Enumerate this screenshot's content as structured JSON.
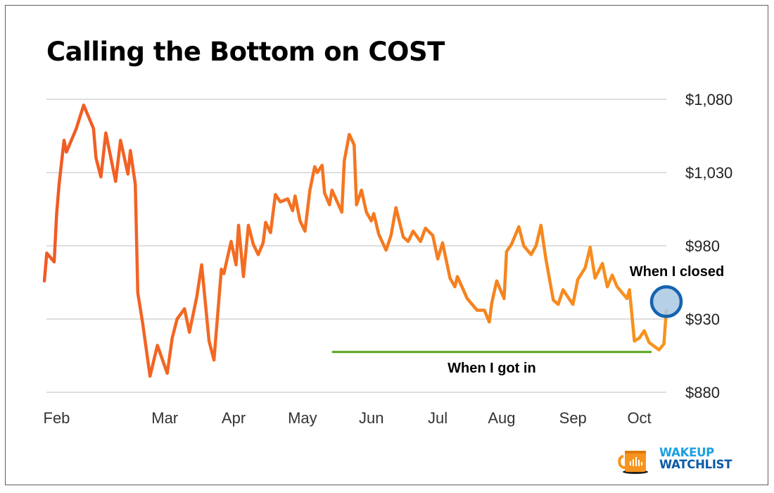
{
  "header": {
    "title": "Calling the Bottom on COST"
  },
  "logo": {
    "line1": "WAKEUP",
    "line2": "WATCHLIST",
    "icon": "coffee-mug-icon"
  },
  "colors": {
    "line_start": "#f15a24",
    "line_end": "#f7941d",
    "entry_line": "#5aa31b",
    "exit_marker_fill": "#a9c8e4",
    "exit_marker_stroke": "#1563b0",
    "grid": "#bdbdbd"
  },
  "chart_data": {
    "type": "line",
    "title": "Calling the Bottom on COST",
    "xlabel": "",
    "ylabel": "",
    "x_unit": "trading-day index (approx.)",
    "ylim": [
      880,
      1080
    ],
    "yticks": [
      {
        "value": 1080,
        "label": "$1,080"
      },
      {
        "value": 1030,
        "label": "$1,030"
      },
      {
        "value": 980,
        "label": "$980"
      },
      {
        "value": 930,
        "label": "$930"
      },
      {
        "value": 880,
        "label": "$880"
      }
    ],
    "xlim": [
      0,
      253
    ],
    "xticks": [
      {
        "value": 5,
        "label": "Feb"
      },
      {
        "value": 49,
        "label": "Mar"
      },
      {
        "value": 77,
        "label": "Apr"
      },
      {
        "value": 105,
        "label": "May"
      },
      {
        "value": 133,
        "label": "Jun"
      },
      {
        "value": 160,
        "label": "Jul"
      },
      {
        "value": 186,
        "label": "Aug"
      },
      {
        "value": 215,
        "label": "Sep"
      },
      {
        "value": 242,
        "label": "Oct"
      }
    ],
    "grid": true,
    "y_axis_side": "right",
    "series": [
      {
        "name": "COST",
        "points": [
          [
            0,
            956
          ],
          [
            1,
            975
          ],
          [
            4,
            969
          ],
          [
            5,
            1002
          ],
          [
            6,
            1022
          ],
          [
            8,
            1052
          ],
          [
            9,
            1044
          ],
          [
            13,
            1060
          ],
          [
            16,
            1076
          ],
          [
            20,
            1060
          ],
          [
            21,
            1040
          ],
          [
            23,
            1027
          ],
          [
            25,
            1057
          ],
          [
            29,
            1024
          ],
          [
            31,
            1052
          ],
          [
            34,
            1029
          ],
          [
            35,
            1045
          ],
          [
            37,
            1022
          ],
          [
            38,
            948
          ],
          [
            40,
            927
          ],
          [
            43,
            891
          ],
          [
            46,
            912
          ],
          [
            50,
            893
          ],
          [
            52,
            917
          ],
          [
            54,
            930
          ],
          [
            57,
            937
          ],
          [
            59,
            921
          ],
          [
            62,
            945
          ],
          [
            64,
            967
          ],
          [
            67,
            915
          ],
          [
            69,
            902
          ],
          [
            72,
            964
          ],
          [
            73,
            961
          ],
          [
            76,
            983
          ],
          [
            78,
            967
          ],
          [
            79,
            994
          ],
          [
            81,
            959
          ],
          [
            83,
            994
          ],
          [
            85,
            981
          ],
          [
            87,
            974
          ],
          [
            89,
            982
          ],
          [
            90,
            996
          ],
          [
            92,
            989
          ],
          [
            94,
            1015
          ],
          [
            96,
            1010
          ],
          [
            99,
            1012
          ],
          [
            101,
            1004
          ],
          [
            102,
            1014
          ],
          [
            104,
            997
          ],
          [
            106,
            990
          ],
          [
            108,
            1018
          ],
          [
            110,
            1034
          ],
          [
            111,
            1030
          ],
          [
            113,
            1035
          ],
          [
            114,
            1016
          ],
          [
            116,
            1008
          ],
          [
            117,
            1018
          ],
          [
            121,
            1003
          ],
          [
            122,
            1038
          ],
          [
            124,
            1056
          ],
          [
            126,
            1049
          ],
          [
            127,
            1008
          ],
          [
            129,
            1018
          ],
          [
            131,
            1003
          ],
          [
            133,
            997
          ],
          [
            134,
            1002
          ],
          [
            136,
            988
          ],
          [
            139,
            977
          ],
          [
            141,
            987
          ],
          [
            143,
            1006
          ],
          [
            146,
            986
          ],
          [
            148,
            983
          ],
          [
            150,
            990
          ],
          [
            153,
            983
          ],
          [
            155,
            992
          ],
          [
            158,
            987
          ],
          [
            160,
            971
          ],
          [
            162,
            982
          ],
          [
            165,
            958
          ],
          [
            167,
            952
          ],
          [
            168,
            959
          ],
          [
            172,
            944
          ],
          [
            176,
            936
          ],
          [
            179,
            936
          ],
          [
            181,
            928
          ],
          [
            182,
            941
          ],
          [
            184,
            956
          ],
          [
            187,
            944
          ],
          [
            188,
            976
          ],
          [
            190,
            981
          ],
          [
            193,
            993
          ],
          [
            195,
            980
          ],
          [
            198,
            974
          ],
          [
            200,
            980
          ],
          [
            202,
            994
          ],
          [
            204,
            971
          ],
          [
            207,
            943
          ],
          [
            209,
            940
          ],
          [
            211,
            950
          ],
          [
            215,
            940
          ],
          [
            217,
            957
          ],
          [
            220,
            965
          ],
          [
            222,
            979
          ],
          [
            224,
            958
          ],
          [
            227,
            968
          ],
          [
            229,
            952
          ],
          [
            231,
            960
          ],
          [
            233,
            952
          ],
          [
            237,
            944
          ],
          [
            238,
            950
          ],
          [
            240,
            915
          ],
          [
            242,
            917
          ],
          [
            244,
            922
          ],
          [
            246,
            914
          ],
          [
            250,
            909
          ],
          [
            252,
            913
          ],
          [
            253,
            936
          ]
        ]
      }
    ],
    "annotations": [
      {
        "type": "hline",
        "label": "When I got in",
        "value": 907.5,
        "x_start": 117,
        "x_end": 247
      },
      {
        "type": "marker",
        "label": "When I closed",
        "x": 253,
        "y": 939
      }
    ]
  }
}
